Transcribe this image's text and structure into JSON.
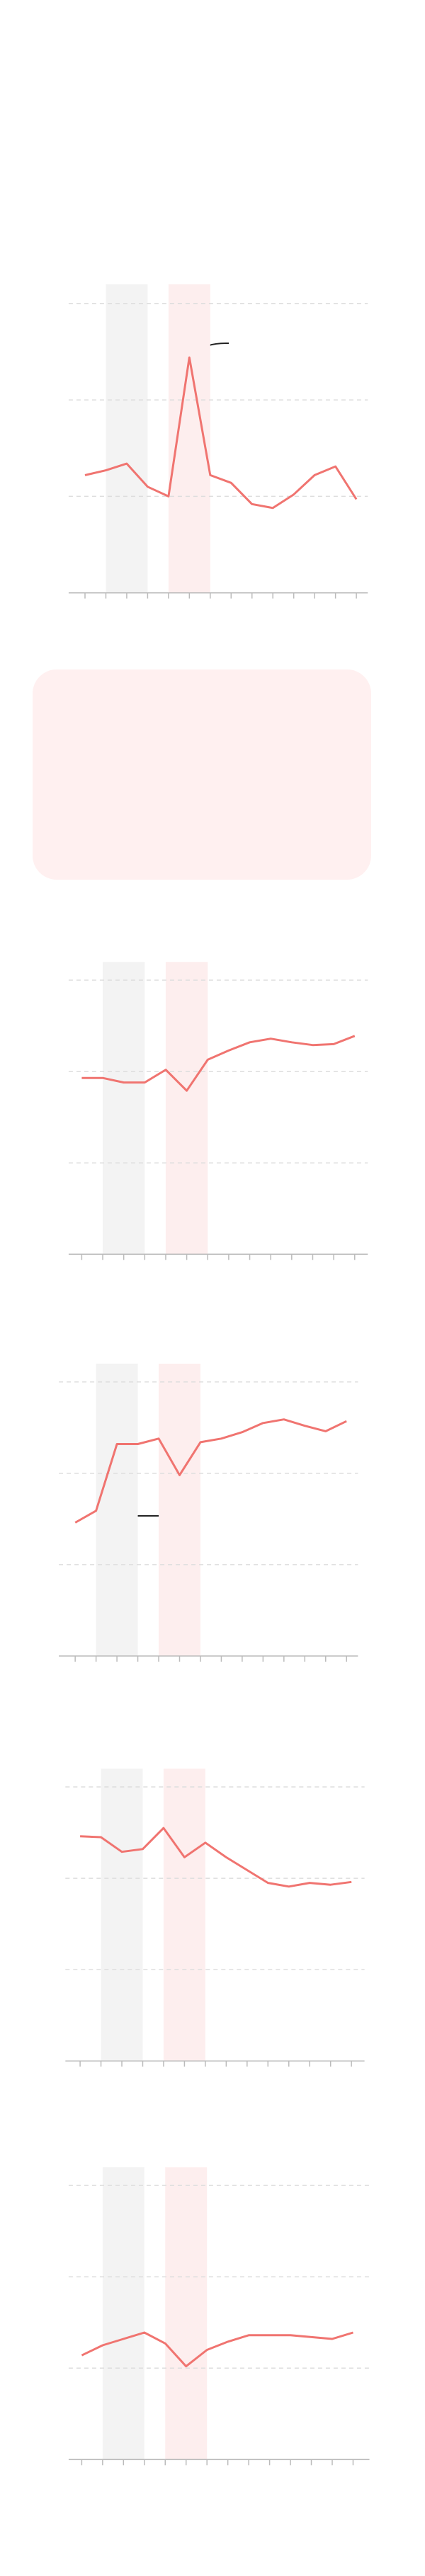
{
  "chart_data": [
    {
      "type": "line",
      "categories": [
        null,
        null,
        null,
        null,
        null,
        null,
        null,
        null,
        null,
        null,
        null,
        null,
        null,
        null
      ],
      "values": [
        1.22,
        1.27,
        1.34,
        1.1,
        1.0,
        2.44,
        1.22,
        1.14,
        0.92,
        0.88,
        1.02,
        1.22,
        1.31,
        0.97
      ],
      "color": "#f07470",
      "ylim": [
        0,
        3.2
      ],
      "yticks": [
        0,
        1,
        2,
        3
      ],
      "grid": true,
      "bands": [
        {
          "from": 1,
          "to": 3,
          "color": "#f3f3f3"
        },
        {
          "from": 4,
          "to": 6,
          "color": "#fdeeee"
        }
      ]
    },
    {
      "type": "line",
      "categories": [
        null,
        null,
        null,
        null,
        null,
        null,
        null,
        null,
        null,
        null,
        null,
        null,
        null,
        null
      ],
      "values": [
        1.93,
        1.93,
        1.88,
        1.88,
        2.02,
        1.79,
        2.13,
        2.23,
        2.32,
        2.36,
        2.32,
        2.29,
        2.3,
        2.39
      ],
      "color": "#f07470",
      "ylim": [
        0,
        3.2
      ],
      "yticks": [
        0,
        1,
        2,
        3
      ],
      "grid": true,
      "bands": [
        {
          "from": 1,
          "to": 3,
          "color": "#f3f3f3"
        },
        {
          "from": 4,
          "to": 6,
          "color": "#fdeeee"
        }
      ]
    },
    {
      "type": "line",
      "categories": [
        null,
        null,
        null,
        null,
        null,
        null,
        null,
        null,
        null,
        null,
        null,
        null,
        null,
        null
      ],
      "values": [
        1.46,
        1.59,
        2.32,
        2.32,
        2.38,
        1.98,
        2.34,
        2.38,
        2.45,
        2.55,
        2.59,
        2.52,
        2.46,
        2.57
      ],
      "color": "#f07470",
      "ylim": [
        0,
        3.2
      ],
      "yticks": [
        0,
        1,
        2,
        3
      ],
      "grid": true,
      "bands": [
        {
          "from": 1,
          "to": 3,
          "color": "#f3f3f3"
        },
        {
          "from": 4,
          "to": 6,
          "color": "#fdeeee"
        }
      ]
    },
    {
      "type": "line",
      "categories": [
        null,
        null,
        null,
        null,
        null,
        null,
        null,
        null,
        null,
        null,
        null,
        null,
        null,
        null
      ],
      "values": [
        2.46,
        2.45,
        2.29,
        2.32,
        2.55,
        2.23,
        2.39,
        2.23,
        2.09,
        1.95,
        1.91,
        1.95,
        1.93,
        1.96
      ],
      "color": "#f07470",
      "ylim": [
        0,
        3.2
      ],
      "yticks": [
        0,
        1,
        2,
        3
      ],
      "grid": true,
      "bands": [
        {
          "from": 1,
          "to": 3,
          "color": "#f3f3f3"
        },
        {
          "from": 4,
          "to": 6,
          "color": "#fdeeee"
        }
      ]
    },
    {
      "type": "line",
      "categories": [
        null,
        null,
        null,
        null,
        null,
        null,
        null,
        null,
        null,
        null,
        null,
        null,
        null,
        null
      ],
      "values": [
        1.14,
        1.25,
        1.32,
        1.39,
        1.27,
        1.02,
        1.2,
        1.29,
        1.36,
        1.36,
        1.36,
        1.34,
        1.32,
        1.39
      ],
      "color": "#f07470",
      "ylim": [
        0,
        3.2
      ],
      "yticks": [
        0,
        1,
        2,
        3
      ],
      "grid": true,
      "bands": [
        {
          "from": 1,
          "to": 3,
          "color": "#f3f3f3"
        },
        {
          "from": 4,
          "to": 6,
          "color": "#fdeeee"
        }
      ]
    }
  ]
}
